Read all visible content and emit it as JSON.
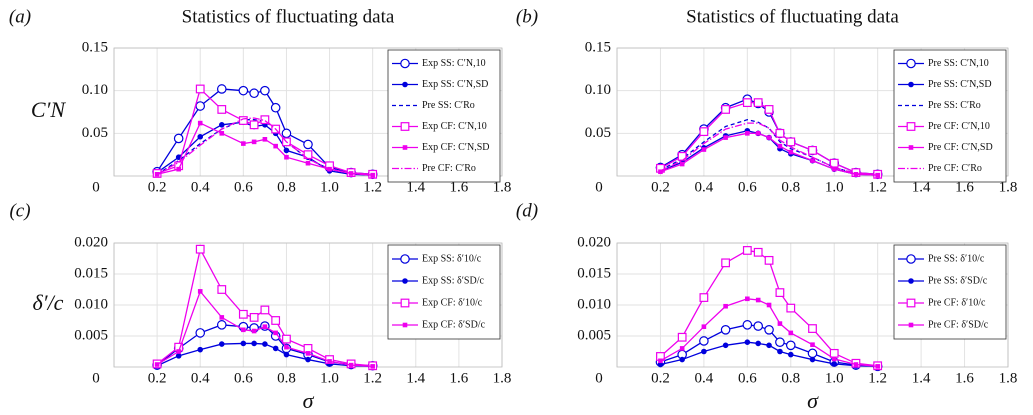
{
  "chart_data": [
    {
      "type": "line",
      "panel_label": "(a)",
      "title": "Statistics of fluctuating data",
      "ylabel": "C′N",
      "x": [
        0.2,
        0.3,
        0.4,
        0.5,
        0.6,
        0.65,
        0.7,
        0.75,
        0.8,
        0.9,
        1.0,
        1.1,
        1.2
      ],
      "xlim": [
        0,
        1.8
      ],
      "xticks": [
        0,
        0.2,
        0.4,
        0.6,
        0.8,
        {
          "value": 1,
          "label": "1.0"
        },
        1.2,
        1.4,
        1.6,
        1.8
      ],
      "ylim": [
        0,
        0.15
      ],
      "yticks": [
        0.05,
        {
          "value": 0.1,
          "label": "0.10"
        },
        0.15
      ],
      "grid": true,
      "legend": "top-right",
      "series": [
        {
          "name": "Exp SS: C′N,10",
          "color": "#0000dd",
          "marker": "circle-open",
          "dash": "solid",
          "values": [
            0.005,
            0.044,
            0.082,
            0.102,
            0.1,
            0.097,
            0.1,
            0.08,
            0.05,
            0.037,
            0.01,
            0.004,
            0.002
          ]
        },
        {
          "name": "Exp SS: C′N,SD",
          "color": "#0000dd",
          "marker": "circle-filled",
          "dash": "solid",
          "values": [
            0.004,
            0.022,
            0.046,
            0.06,
            0.063,
            0.058,
            0.06,
            0.05,
            0.03,
            0.022,
            0.006,
            0.002,
            0.001
          ]
        },
        {
          "name": "Pre SS: C′Ro",
          "color": "#0000dd",
          "marker": "none",
          "dash": "dashed",
          "values": [
            0.002,
            0.018,
            0.038,
            0.055,
            0.066,
            0.066,
            0.064,
            0.055,
            0.04,
            0.02,
            0.008,
            0.003,
            0.001
          ]
        },
        {
          "name": "Exp CF: C′N,10",
          "color": "#ee00ee",
          "marker": "square-open",
          "dash": "solid",
          "values": [
            0.003,
            0.012,
            0.102,
            0.078,
            0.065,
            0.06,
            0.066,
            0.055,
            0.04,
            0.025,
            0.012,
            0.004,
            0.002
          ]
        },
        {
          "name": "Exp CF: C′N,SD",
          "color": "#ee00ee",
          "marker": "square-filled",
          "dash": "solid",
          "values": [
            0.002,
            0.008,
            0.062,
            0.05,
            0.038,
            0.04,
            0.043,
            0.035,
            0.022,
            0.015,
            0.008,
            0.003,
            0.001
          ]
        },
        {
          "name": "Pre CF: C′Ro",
          "color": "#ee00ee",
          "marker": "none",
          "dash": "dashdot",
          "values": [
            0.002,
            0.016,
            0.036,
            0.055,
            0.067,
            0.068,
            0.065,
            0.055,
            0.04,
            0.02,
            0.008,
            0.003,
            0.001
          ]
        }
      ]
    },
    {
      "type": "line",
      "panel_label": "(b)",
      "title": "Statistics of fluctuating data",
      "x": [
        0.2,
        0.3,
        0.4,
        0.5,
        0.6,
        0.65,
        0.7,
        0.75,
        0.8,
        0.9,
        1.0,
        1.1,
        1.2
      ],
      "xlim": [
        0,
        1.8
      ],
      "xticks": [
        0,
        0.2,
        0.4,
        0.6,
        0.8,
        {
          "value": 1,
          "label": "1.0"
        },
        1.2,
        1.4,
        1.6,
        1.8
      ],
      "ylim": [
        0,
        0.15
      ],
      "yticks": [
        0.05,
        {
          "value": 0.1,
          "label": "0.10"
        },
        0.15
      ],
      "grid": true,
      "legend": "top-right",
      "series": [
        {
          "name": "Pre SS: C′N,10",
          "color": "#0000dd",
          "marker": "circle-open",
          "dash": "solid",
          "values": [
            0.01,
            0.025,
            0.055,
            0.08,
            0.09,
            0.085,
            0.075,
            0.05,
            0.04,
            0.03,
            0.015,
            0.004,
            0.002
          ]
        },
        {
          "name": "Pre SS: C′N,SD",
          "color": "#0000dd",
          "marker": "circle-filled",
          "dash": "solid",
          "values": [
            0.006,
            0.016,
            0.033,
            0.047,
            0.053,
            0.05,
            0.045,
            0.032,
            0.026,
            0.018,
            0.008,
            0.002,
            0.001
          ]
        },
        {
          "name": "Pre SS: C′Ro",
          "color": "#0000dd",
          "marker": "none",
          "dash": "dashed",
          "values": [
            0.007,
            0.02,
            0.04,
            0.058,
            0.066,
            0.063,
            0.056,
            0.04,
            0.032,
            0.022,
            0.01,
            0.003,
            0.001
          ]
        },
        {
          "name": "Pre CF: C′N,10",
          "color": "#ee00ee",
          "marker": "square-open",
          "dash": "solid",
          "values": [
            0.009,
            0.023,
            0.052,
            0.078,
            0.086,
            0.086,
            0.078,
            0.05,
            0.04,
            0.03,
            0.015,
            0.004,
            0.002
          ]
        },
        {
          "name": "Pre CF: C′N,SD",
          "color": "#ee00ee",
          "marker": "square-filled",
          "dash": "solid",
          "values": [
            0.005,
            0.014,
            0.031,
            0.045,
            0.05,
            0.05,
            0.045,
            0.035,
            0.028,
            0.018,
            0.008,
            0.002,
            0.001
          ]
        },
        {
          "name": "Pre CF: C′Ro",
          "color": "#ee00ee",
          "marker": "none",
          "dash": "dashdot",
          "values": [
            0.006,
            0.018,
            0.038,
            0.055,
            0.062,
            0.062,
            0.056,
            0.042,
            0.034,
            0.022,
            0.01,
            0.003,
            0.001
          ]
        }
      ]
    },
    {
      "type": "line",
      "panel_label": "(c)",
      "ylabel": "δ′/c",
      "xlabel": "σ",
      "x": [
        0.2,
        0.3,
        0.4,
        0.5,
        0.6,
        0.65,
        0.7,
        0.75,
        0.8,
        0.9,
        1.0,
        1.1,
        1.2
      ],
      "xlim": [
        0,
        1.8
      ],
      "xticks": [
        0,
        0.2,
        0.4,
        0.6,
        0.8,
        {
          "value": 1,
          "label": "1.0"
        },
        1.2,
        1.4,
        1.6,
        1.8
      ],
      "ylim": [
        0,
        0.02
      ],
      "yticks": [
        0.005,
        {
          "value": 0.01,
          "label": "0.010"
        },
        0.015,
        {
          "value": 0.02,
          "label": "0.020"
        }
      ],
      "grid": true,
      "legend": "top-right",
      "series": [
        {
          "name": "Exp SS: δ′10/c",
          "color": "#0000dd",
          "marker": "circle-open",
          "dash": "solid",
          "values": [
            0.0003,
            0.003,
            0.0055,
            0.0068,
            0.0065,
            0.0063,
            0.0066,
            0.005,
            0.003,
            0.002,
            0.0008,
            0.0004,
            0.0002
          ]
        },
        {
          "name": "Exp SS: δ′SD/c",
          "color": "#0000dd",
          "marker": "circle-filled",
          "dash": "solid",
          "values": [
            0.0002,
            0.0018,
            0.0028,
            0.0037,
            0.0038,
            0.0038,
            0.0037,
            0.003,
            0.002,
            0.0012,
            0.0005,
            0.0002,
            0.0001
          ]
        },
        {
          "name": "Exp CF: δ′10/c",
          "color": "#ee00ee",
          "marker": "square-open",
          "dash": "solid",
          "values": [
            0.0005,
            0.0032,
            0.019,
            0.0125,
            0.0085,
            0.008,
            0.0092,
            0.0075,
            0.0045,
            0.003,
            0.0012,
            0.0005,
            0.0002
          ]
        },
        {
          "name": "Exp CF: δ′SD/c",
          "color": "#ee00ee",
          "marker": "square-filled",
          "dash": "solid",
          "values": [
            0.0004,
            0.0025,
            0.0122,
            0.008,
            0.006,
            0.0058,
            0.0065,
            0.0055,
            0.0032,
            0.0022,
            0.0009,
            0.0003,
            0.0001
          ]
        }
      ]
    },
    {
      "type": "line",
      "panel_label": "(d)",
      "xlabel": "σ",
      "x": [
        0.2,
        0.3,
        0.4,
        0.5,
        0.6,
        0.65,
        0.7,
        0.75,
        0.8,
        0.9,
        1.0,
        1.1,
        1.2
      ],
      "xlim": [
        0,
        1.8
      ],
      "xticks": [
        0,
        0.2,
        0.4,
        0.6,
        0.8,
        {
          "value": 1,
          "label": "1.0"
        },
        1.2,
        1.4,
        1.6,
        1.8
      ],
      "ylim": [
        0,
        0.02
      ],
      "yticks": [
        0.005,
        {
          "value": 0.01,
          "label": "0.010"
        },
        0.015,
        {
          "value": 0.02,
          "label": "0.020"
        }
      ],
      "grid": true,
      "legend": "top-right",
      "series": [
        {
          "name": "Pre SS: δ′10/c",
          "color": "#0000dd",
          "marker": "circle-open",
          "dash": "solid",
          "values": [
            0.0008,
            0.002,
            0.0042,
            0.006,
            0.0068,
            0.0066,
            0.006,
            0.004,
            0.0035,
            0.0022,
            0.0008,
            0.0003,
            0.0001
          ]
        },
        {
          "name": "Pre SS: δ′SD/c",
          "color": "#0000dd",
          "marker": "circle-filled",
          "dash": "solid",
          "values": [
            0.0004,
            0.0012,
            0.0025,
            0.0035,
            0.004,
            0.0038,
            0.0035,
            0.0025,
            0.002,
            0.0012,
            0.0005,
            0.0002,
            0.0001
          ]
        },
        {
          "name": "Pre CF: δ′10/c",
          "color": "#ee00ee",
          "marker": "square-open",
          "dash": "solid",
          "values": [
            0.0017,
            0.0048,
            0.0112,
            0.0168,
            0.0188,
            0.0185,
            0.0172,
            0.012,
            0.0095,
            0.0062,
            0.0022,
            0.0006,
            0.0002
          ]
        },
        {
          "name": "Pre CF: δ′SD/c",
          "color": "#ee00ee",
          "marker": "square-filled",
          "dash": "solid",
          "values": [
            0.001,
            0.003,
            0.0065,
            0.0098,
            0.011,
            0.0108,
            0.01,
            0.007,
            0.0055,
            0.0036,
            0.0013,
            0.0004,
            0.0001
          ]
        }
      ]
    }
  ]
}
